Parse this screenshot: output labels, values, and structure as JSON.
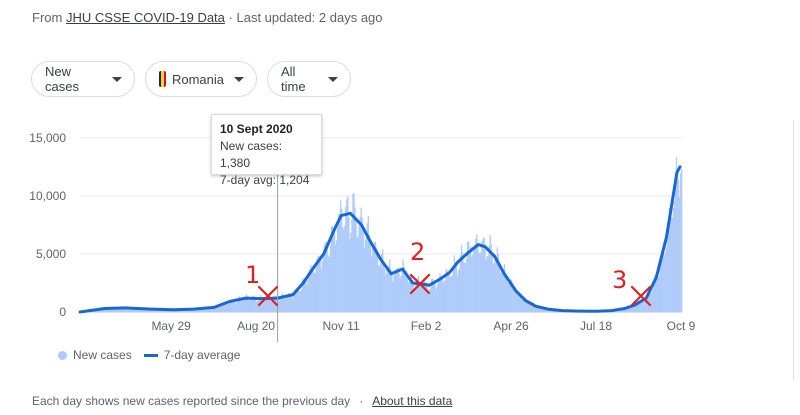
{
  "source": {
    "prefix": "From",
    "link": "JHU CSSE COVID-19 Data",
    "separator": "·",
    "updated": "Last updated: 2 days ago"
  },
  "filters": {
    "metric": "New cases",
    "country": "Romania",
    "range": "All time"
  },
  "colors": {
    "bars": "#aecbfa",
    "line": "#1967d2",
    "annotation": "#e02020",
    "flag": [
      "#002b7f",
      "#fcd116",
      "#ce1126"
    ]
  },
  "tooltip": {
    "date": "10 Sept 2020",
    "new_cases": "New cases: 1,380",
    "avg": "7-day avg: 1,204"
  },
  "legend": {
    "bars": "New cases",
    "line": "7-day average"
  },
  "footer": {
    "text": "Each day shows new cases reported since the previous day",
    "separator": "·",
    "link": "About this data"
  },
  "annotations": [
    "1",
    "2",
    "3"
  ],
  "chart_data": {
    "type": "bar",
    "title": "",
    "xlabel": "",
    "ylabel": "",
    "ylim": [
      0,
      15500
    ],
    "y_ticks": [
      0,
      5000,
      10000,
      15000
    ],
    "y_tick_labels": [
      "0",
      "5,000",
      "10,000",
      "15,000"
    ],
    "x_start": "2020-03-01",
    "x_end": "2021-10-10",
    "x_ticks": [
      "May 29",
      "Aug 20",
      "Nov 11",
      "Feb 2",
      "Apr 26",
      "Jul 18",
      "Oct 9"
    ],
    "x_tick_dates": [
      "2020-05-29",
      "2020-08-20",
      "2020-11-11",
      "2021-02-02",
      "2021-04-26",
      "2021-07-18",
      "2021-10-09"
    ],
    "gridlines": true,
    "legend_position": "bottom-left",
    "series": [
      {
        "name": "7-day average",
        "style": "line",
        "x": [
          "2020-03-01",
          "2020-03-25",
          "2020-04-15",
          "2020-05-10",
          "2020-06-01",
          "2020-06-20",
          "2020-07-10",
          "2020-07-25",
          "2020-08-10",
          "2020-08-25",
          "2020-09-10",
          "2020-09-25",
          "2020-10-05",
          "2020-10-15",
          "2020-10-25",
          "2020-11-05",
          "2020-11-11",
          "2020-11-20",
          "2020-12-01",
          "2020-12-10",
          "2020-12-20",
          "2020-12-30",
          "2021-01-10",
          "2021-01-20",
          "2021-01-30",
          "2021-02-05",
          "2021-02-15",
          "2021-02-25",
          "2021-03-05",
          "2021-03-15",
          "2021-03-25",
          "2021-04-01",
          "2021-04-10",
          "2021-04-20",
          "2021-05-01",
          "2021-05-10",
          "2021-05-20",
          "2021-06-01",
          "2021-06-15",
          "2021-07-01",
          "2021-07-18",
          "2021-08-01",
          "2021-08-15",
          "2021-08-25",
          "2021-09-05",
          "2021-09-15",
          "2021-09-25",
          "2021-10-05",
          "2021-10-08"
        ],
        "values": [
          0,
          300,
          350,
          250,
          200,
          250,
          400,
          900,
          1200,
          1150,
          1200,
          1500,
          2500,
          3800,
          5000,
          7200,
          8300,
          8500,
          7500,
          6000,
          4500,
          3300,
          3700,
          2500,
          2400,
          2300,
          2800,
          3400,
          4300,
          5100,
          5800,
          5600,
          4800,
          3200,
          1800,
          1000,
          500,
          250,
          120,
          80,
          60,
          100,
          300,
          600,
          1200,
          3000,
          6500,
          12000,
          12500
        ]
      },
      {
        "name": "New cases",
        "style": "bars",
        "note": "daily bars follow the 7-day average with weekly variation"
      }
    ]
  }
}
